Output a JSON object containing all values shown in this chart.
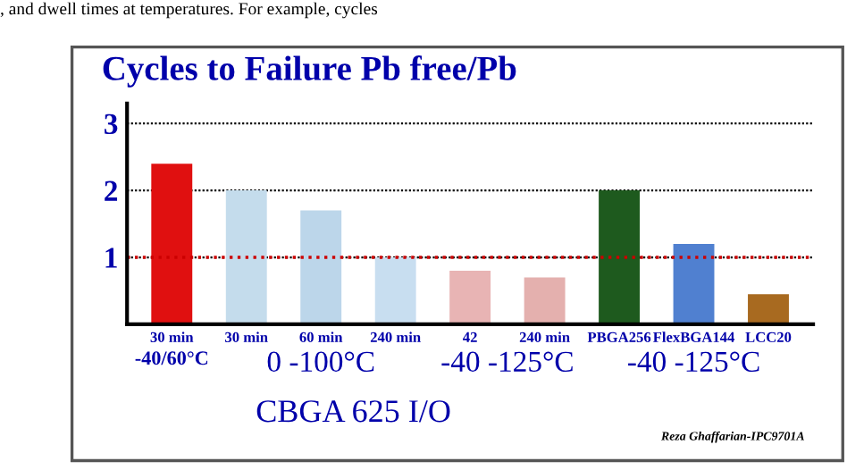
{
  "chart_data": {
    "type": "bar",
    "title": "Cycles to Failure Pb free/Pb",
    "categories": [
      "30 min",
      "30 min",
      "60 min",
      "240 min",
      "42",
      "240 min",
      "PBGA256",
      "FlexBGA144",
      "LCC20"
    ],
    "values": [
      2.4,
      2.0,
      1.7,
      1.0,
      0.8,
      0.7,
      2.0,
      1.2,
      0.45
    ],
    "colors": [
      "#e01010",
      "#c4dcec",
      "#bcd6ea",
      "#c8def0",
      "#e8b4b4",
      "#e4b0ae",
      "#1e5a1e",
      "#5080d0",
      "#a86a20"
    ],
    "xlabel": "CBGA 625 I/O",
    "ylim": [
      0,
      3.3
    ],
    "yticks": [
      1,
      2,
      3
    ],
    "grid": "y",
    "ref_lines": [
      {
        "axis": "y",
        "value": 1,
        "color": "#cc0000",
        "line_style": "dotted"
      }
    ],
    "annotations": [
      ", and dwell times at temperatures. For example, cycles",
      "-40/60°C",
      "0 -100°C",
      "-40 -125°C",
      "-40 -125°C",
      "Reza Ghaffarian-IPC9701A"
    ]
  }
}
